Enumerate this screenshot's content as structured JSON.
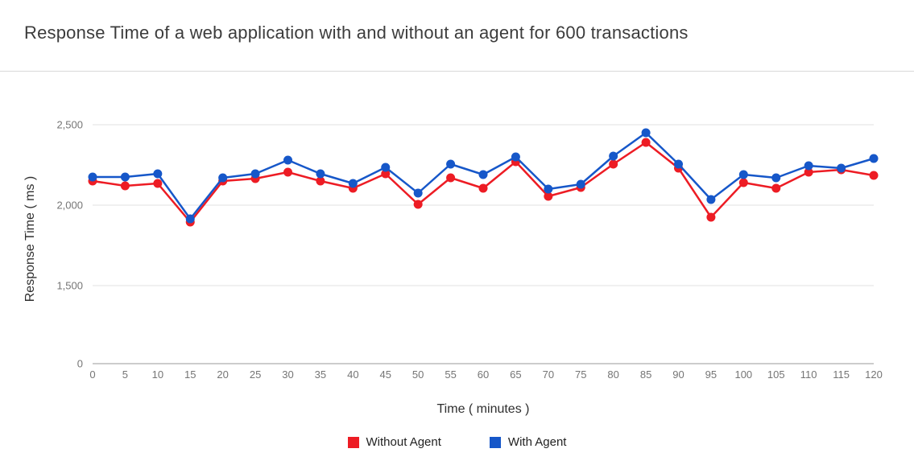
{
  "chart_data": {
    "type": "line",
    "title": "Response Time of a web application with and without an agent for 600 transactions",
    "xlabel": "Time ( minutes )",
    "ylabel": "Response Time ( ms )",
    "legend_position": "bottom-center",
    "grid": true,
    "x": [
      0,
      5,
      10,
      15,
      20,
      25,
      30,
      35,
      40,
      45,
      50,
      55,
      60,
      65,
      70,
      75,
      80,
      85,
      90,
      95,
      100,
      105,
      110,
      115,
      120
    ],
    "y_ticks": [
      {
        "label": "0",
        "value": 0
      },
      {
        "label": "1,500",
        "value": 1500
      },
      {
        "label": "2,000",
        "value": 2000
      },
      {
        "label": "2,500",
        "value": 2500
      }
    ],
    "series": [
      {
        "name": "Without Agent",
        "color": "#ed1c24",
        "values": [
          2150,
          2120,
          2135,
          1895,
          2150,
          2165,
          2205,
          2150,
          2105,
          2195,
          2005,
          2170,
          2105,
          2270,
          2055,
          2110,
          2255,
          2390,
          2230,
          1925,
          2140,
          2105,
          2205,
          2220,
          2185
        ]
      },
      {
        "name": "With Agent",
        "color": "#1657c9",
        "values": [
          2175,
          2175,
          2195,
          1915,
          2170,
          2195,
          2280,
          2195,
          2135,
          2235,
          2075,
          2255,
          2190,
          2300,
          2100,
          2130,
          2305,
          2450,
          2255,
          2035,
          2190,
          2170,
          2245,
          2230,
          2290
        ]
      }
    ],
    "colors": {
      "gridline": "#e0e0e0",
      "baseline": "#999999",
      "tick_label": "#757575",
      "title_text": "#3c3c3c"
    }
  }
}
